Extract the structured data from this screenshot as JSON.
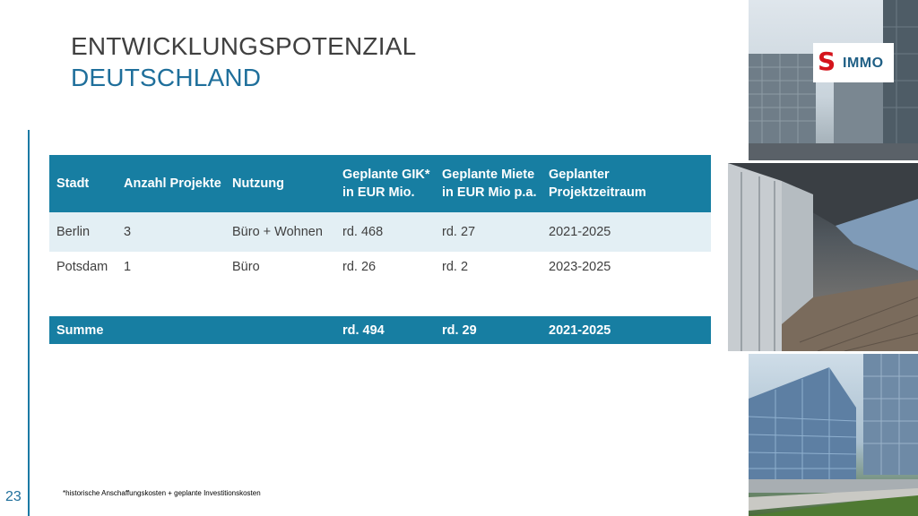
{
  "title": {
    "line1": "ENTWICKLUNGSPOTENZIAL",
    "line2": "DEUTSCHLAND"
  },
  "logo": {
    "letter": "S",
    "text": "IMMO"
  },
  "table": {
    "headers": [
      "Stadt",
      "Anzahl Projekte",
      "Nutzung",
      "Geplante GIK*",
      "in EUR Mio.",
      "Geplante Miete",
      "in EUR Mio p.a.",
      "Geplanter",
      "Projektzeitraum"
    ],
    "rows": [
      [
        "Berlin",
        "3",
        "Büro + Wohnen",
        "rd. 468",
        "rd. 27",
        "2021-2025"
      ],
      [
        "Potsdam",
        "1",
        "Büro",
        "rd. 26",
        "rd. 2",
        "2023-2025"
      ]
    ],
    "sum": {
      "label": "Summe",
      "gik": "rd. 494",
      "miete": "rd. 29",
      "zeitraum": "2021-2025"
    }
  },
  "footnote": "*historische Anschaffungskosten + geplante Investitionskosten",
  "page_number": "23",
  "colors": {
    "accent": "#177ea2",
    "title_blue": "#1f6f9b",
    "row_tint": "#e3eff4",
    "logo_red": "#d4141c"
  }
}
